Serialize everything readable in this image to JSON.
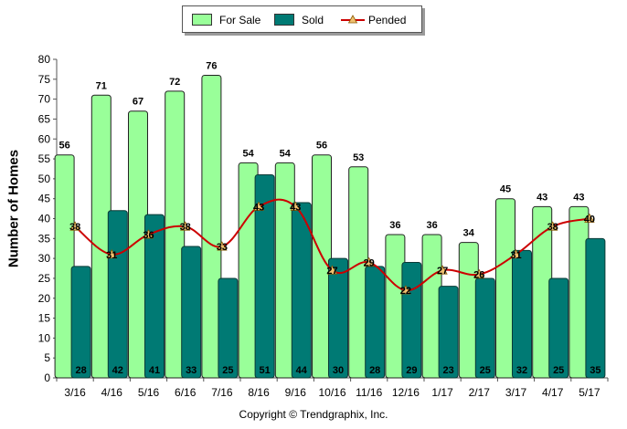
{
  "chart_data": {
    "type": "bar",
    "categories": [
      "3/16",
      "4/16",
      "5/16",
      "6/16",
      "7/16",
      "8/16",
      "9/16",
      "10/16",
      "11/16",
      "12/16",
      "1/17",
      "2/17",
      "3/17",
      "4/17",
      "5/17"
    ],
    "series": [
      {
        "name": "For Sale",
        "type": "bar",
        "color": "#99ff99",
        "values": [
          56,
          71,
          67,
          72,
          76,
          54,
          54,
          56,
          53,
          36,
          36,
          34,
          45,
          43,
          43
        ]
      },
      {
        "name": "Sold",
        "type": "bar",
        "color": "#007a74",
        "values": [
          28,
          42,
          41,
          33,
          25,
          51,
          44,
          30,
          28,
          29,
          23,
          25,
          32,
          25,
          35
        ]
      },
      {
        "name": "Pended",
        "type": "line",
        "color": "#cc0000",
        "marker_color": "#f0c070",
        "values": [
          38,
          31,
          36,
          38,
          33,
          43,
          43,
          27,
          29,
          22,
          27,
          26,
          31,
          38,
          40
        ]
      }
    ],
    "ylabel": "Number of Homes",
    "ylim": [
      0,
      80
    ],
    "yticks": [
      0,
      5,
      10,
      15,
      20,
      25,
      30,
      35,
      40,
      45,
      50,
      55,
      60,
      65,
      70,
      75,
      80
    ],
    "grid": false,
    "legend": "top-center"
  },
  "footer": {
    "copyright": "Copyright © Trendgraphix, Inc."
  }
}
